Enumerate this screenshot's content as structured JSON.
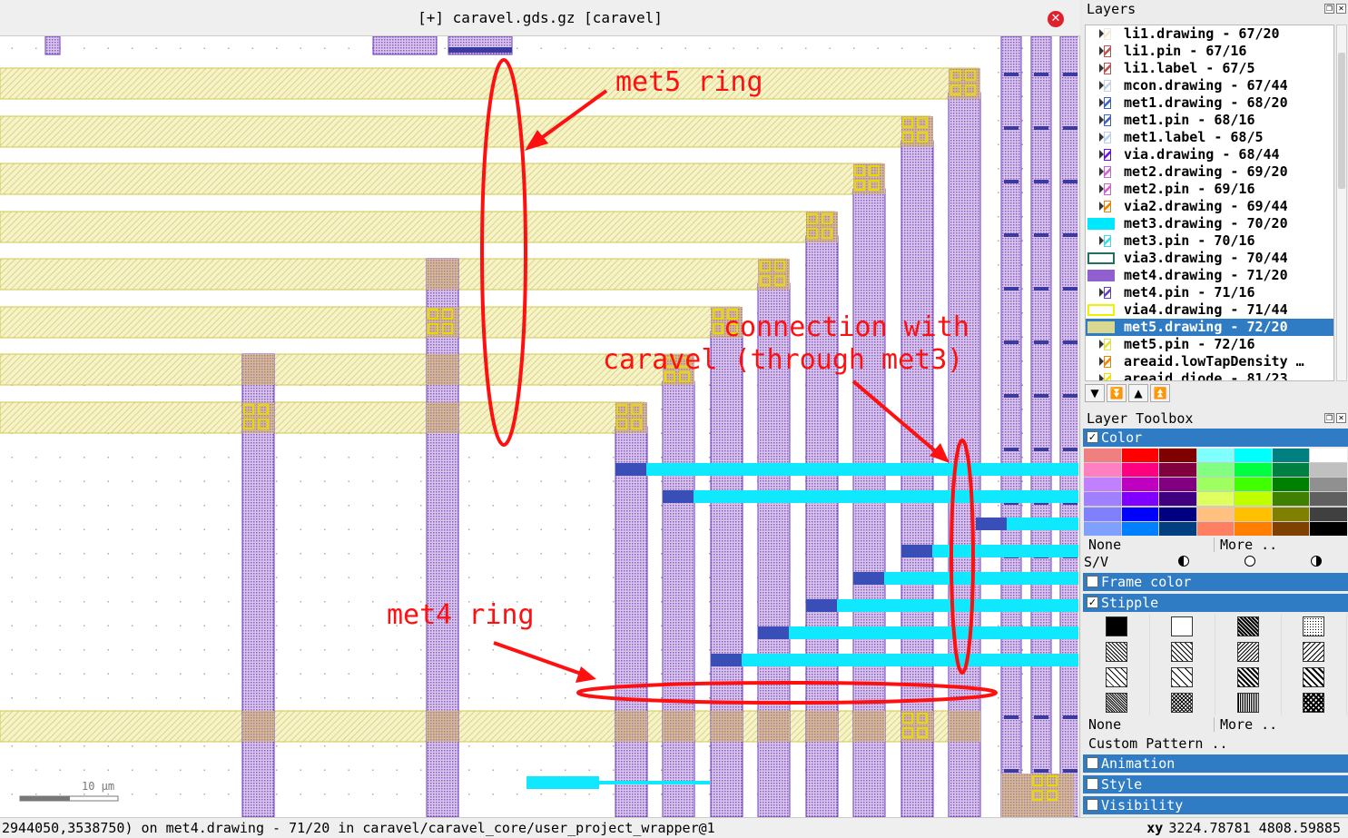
{
  "viewer": {
    "title": "[+] caravel.gds.gz [caravel]",
    "close_icon": "close-icon"
  },
  "canvas": {
    "scale_label": "10 µm",
    "annotations": {
      "met5_ring": "met5 ring",
      "connection_line1": "connection with",
      "connection_line2": "caravel (through met3)",
      "met4_ring": "met4 ring"
    }
  },
  "status": {
    "text": "2944050,3538750) on met4.drawing - 71/20 in caravel/caravel_core/user_project_wrapper@1",
    "coord_label": "xy",
    "coord_value": "3224.78781 4808.59885"
  },
  "layers": {
    "title": "Layers",
    "items": [
      {
        "label": "li1.drawing - 67/20",
        "color": "#f4e8d6"
      },
      {
        "label": "li1.pin - 67/16",
        "color": "#c0504d"
      },
      {
        "label": "li1.label - 67/5",
        "color": "#c0504d"
      },
      {
        "label": "mcon.drawing - 67/44",
        "color": "#c6cfe6"
      },
      {
        "label": "met1.drawing - 68/20",
        "color": "#3b5fc0"
      },
      {
        "label": "met1.pin - 68/16",
        "color": "#3b5fc0"
      },
      {
        "label": "met1.label - 68/5",
        "color": "#b8d0f0"
      },
      {
        "label": "via.drawing - 68/44",
        "color": "#6a10e0"
      },
      {
        "label": "met2.drawing - 69/20",
        "color": "#d060d0"
      },
      {
        "label": "met2.pin - 69/16",
        "color": "#d060d0"
      },
      {
        "label": "via2.drawing - 69/44",
        "color": "#f08000"
      },
      {
        "label": "met3.drawing - 70/20",
        "color": "#00e8ff"
      },
      {
        "label": "met3.pin - 70/16",
        "color": "#40d8e8"
      },
      {
        "label": "via3.drawing - 70/44",
        "color": "#207060"
      },
      {
        "label": "met4.drawing - 71/20",
        "color": "#9060d0"
      },
      {
        "label": "met4.pin - 71/16",
        "color": "#6040c0"
      },
      {
        "label": "via4.drawing - 71/44",
        "color": "#f0f000"
      },
      {
        "label": "met5.drawing - 72/20",
        "color": "#d8d890"
      },
      {
        "label": "met5.pin - 72/16",
        "color": "#e0e040"
      },
      {
        "label": "areaid.lowTapDensity …",
        "color": "#f08000"
      },
      {
        "label": "areaid.diode - 81/23",
        "color": "#f0e000"
      }
    ],
    "selected_index": 17
  },
  "toolbox": {
    "title": "Layer Toolbox",
    "color_section": "Color",
    "palette": [
      "#f08080",
      "#ff0000",
      "#800000",
      "#80ffff",
      "#00ffff",
      "#008080",
      "#ffffff",
      "#ff80c0",
      "#ff0080",
      "#800040",
      "#80ff80",
      "#00ff40",
      "#008040",
      "#c0c0c0",
      "#c080ff",
      "#c000c0",
      "#800080",
      "#a0ff60",
      "#40ff00",
      "#008000",
      "#909090",
      "#a080ff",
      "#8000ff",
      "#400080",
      "#e0ff60",
      "#c0ff00",
      "#408000",
      "#606060",
      "#8080ff",
      "#0000ff",
      "#000080",
      "#ffc080",
      "#ffc000",
      "#808000",
      "#404040",
      "#80a0ff",
      "#0080ff",
      "#004080",
      "#ff8060",
      "#ff8000",
      "#804000",
      "#000000"
    ],
    "none_label": "None",
    "more_label": "More ..",
    "sv_label": "S/V",
    "frame_color": "Frame color",
    "stipple": "Stipple",
    "stipple_none": "None",
    "stipple_more": "More ..",
    "custom_pattern": "Custom Pattern ..",
    "animation": "Animation",
    "style": "Style",
    "visibility": "Visibility"
  }
}
